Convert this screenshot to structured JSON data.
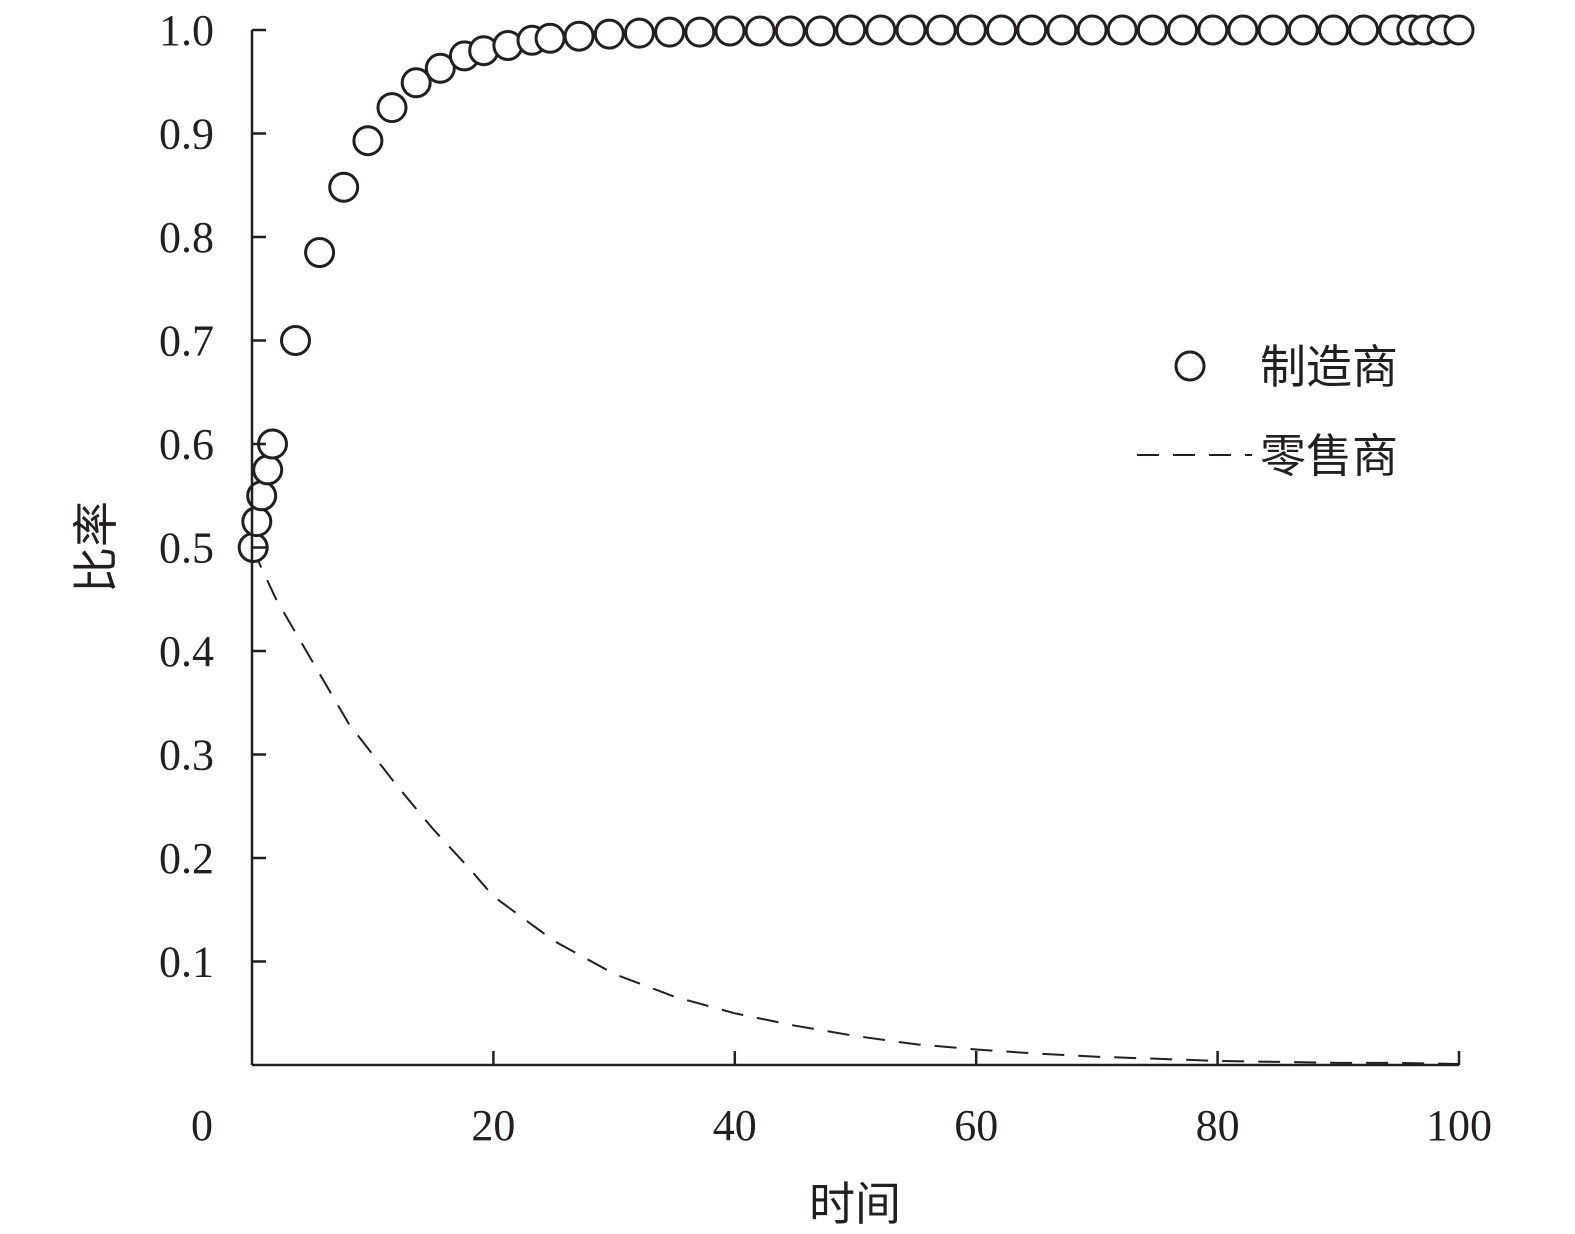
{
  "colors": {
    "ink": "#231f20",
    "background": "#ffffff"
  },
  "chart_data": {
    "type": "scatter",
    "title": "",
    "xlabel": "时间",
    "ylabel": "比率",
    "xlim": [
      0,
      100
    ],
    "ylim": [
      0,
      1.0
    ],
    "x_ticks": [
      0,
      20,
      40,
      60,
      80,
      100
    ],
    "x_tick_labels": [
      "0",
      "20",
      "40",
      "60",
      "80",
      "100"
    ],
    "y_ticks": [
      0.1,
      0.2,
      0.3,
      0.4,
      0.5,
      0.6,
      0.7,
      0.8,
      0.9,
      1.0
    ],
    "y_tick_labels": [
      "0.1",
      "0.2",
      "0.3",
      "0.4",
      "0.5",
      "0.6",
      "0.7",
      "0.8",
      "0.9",
      "1.0"
    ],
    "grid": false,
    "legend": {
      "position": "right-middle"
    },
    "series": [
      {
        "name": "制造商",
        "style": "markers-open-circle",
        "x": [
          0.1,
          0.4,
          0.8,
          1.3,
          1.7,
          3.6,
          5.6,
          7.6,
          9.6,
          11.6,
          13.6,
          15.6,
          17.6,
          19.2,
          21.2,
          23.2,
          24.7,
          27.1,
          29.6,
          32.1,
          34.6,
          37.1,
          39.6,
          42.1,
          44.6,
          47.1,
          49.6,
          52.1,
          54.6,
          57.1,
          59.6,
          62.1,
          64.6,
          67.1,
          69.6,
          72.1,
          74.6,
          77.1,
          79.6,
          82.1,
          84.6,
          87.1,
          89.6,
          92.1,
          94.6,
          96.1,
          97.1,
          98.6,
          100.0
        ],
        "y": [
          0.5,
          0.525,
          0.55,
          0.575,
          0.6,
          0.7,
          0.785,
          0.848,
          0.893,
          0.925,
          0.949,
          0.963,
          0.975,
          0.98,
          0.985,
          0.99,
          0.992,
          0.994,
          0.996,
          0.997,
          0.998,
          0.998,
          0.999,
          0.999,
          0.999,
          0.999,
          1.0,
          1.0,
          1.0,
          1.0,
          1.0,
          1.0,
          1.0,
          1.0,
          1.0,
          1.0,
          1.0,
          1.0,
          1.0,
          1.0,
          1.0,
          1.0,
          1.0,
          1.0,
          1.0,
          1.0,
          1.0,
          1.0,
          1.0
        ]
      },
      {
        "name": "零售商",
        "style": "dashed-line",
        "x": [
          0,
          2,
          4,
          6,
          8,
          10,
          12,
          15,
          18,
          20,
          25,
          30,
          35,
          40,
          45,
          50,
          55,
          60,
          65,
          70,
          75,
          80,
          85,
          90,
          95,
          100
        ],
        "y": [
          0.5,
          0.45,
          0.41,
          0.37,
          0.33,
          0.3,
          0.27,
          0.228,
          0.19,
          0.163,
          0.12,
          0.088,
          0.066,
          0.05,
          0.038,
          0.028,
          0.02,
          0.015,
          0.011,
          0.008,
          0.006,
          0.004,
          0.003,
          0.002,
          0.002,
          0.001
        ]
      }
    ]
  }
}
